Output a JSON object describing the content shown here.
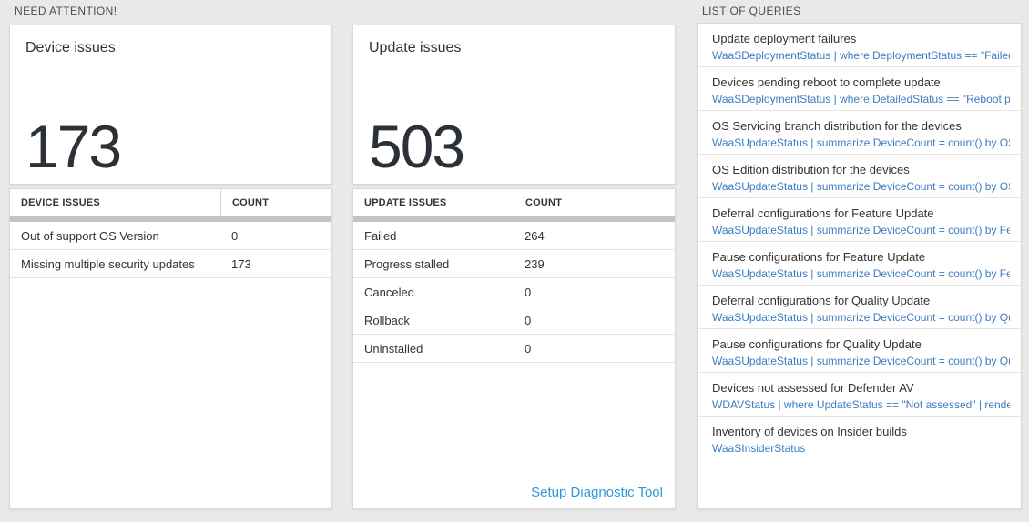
{
  "sections": {
    "need_attention": {
      "label": "NEED ATTENTION!"
    },
    "list_of_queries": {
      "label": "LIST OF QUERIES"
    }
  },
  "device_card": {
    "title": "Device issues",
    "count": "173",
    "table": {
      "headers": [
        "DEVICE ISSUES",
        "COUNT"
      ],
      "rows": [
        {
          "label": "Out of support OS Version",
          "count": "0"
        },
        {
          "label": "Missing multiple security updates",
          "count": "173"
        }
      ]
    }
  },
  "update_card": {
    "title": "Update issues",
    "count": "503",
    "table": {
      "headers": [
        "UPDATE ISSUES",
        "COUNT"
      ],
      "rows": [
        {
          "label": "Failed",
          "count": "264"
        },
        {
          "label": "Progress stalled",
          "count": "239"
        },
        {
          "label": "Canceled",
          "count": "0"
        },
        {
          "label": "Rollback",
          "count": "0"
        },
        {
          "label": "Uninstalled",
          "count": "0"
        }
      ]
    },
    "setup_link": "Setup Diagnostic Tool"
  },
  "queries": [
    {
      "title": "Update deployment failures",
      "query": "WaaSDeploymentStatus | where DeploymentStatus == \"Failed\" |..."
    },
    {
      "title": "Devices pending reboot to complete update",
      "query": "WaaSDeploymentStatus | where DetailedStatus == \"Reboot pend..."
    },
    {
      "title": "OS Servicing branch distribution for the devices",
      "query": "WaaSUpdateStatus | summarize DeviceCount = count() by OSSer..."
    },
    {
      "title": "OS Edition distribution for the devices",
      "query": "WaaSUpdateStatus | summarize DeviceCount = count() by OSEdit..."
    },
    {
      "title": "Deferral configurations for Feature Update",
      "query": "WaaSUpdateStatus | summarize DeviceCount = count() by Featur..."
    },
    {
      "title": "Pause configurations for Feature Update",
      "query": "WaaSUpdateStatus | summarize DeviceCount = count() by Featur..."
    },
    {
      "title": "Deferral configurations for Quality Update",
      "query": "WaaSUpdateStatus | summarize DeviceCount = count() by Qualit..."
    },
    {
      "title": "Pause configurations for Quality Update",
      "query": "WaaSUpdateStatus | summarize DeviceCount = count() by Qualit..."
    },
    {
      "title": "Devices not assessed for Defender AV",
      "query": "WDAVStatus | where UpdateStatus == \"Not assessed\" | render ta..."
    },
    {
      "title": "Inventory of devices on Insider builds",
      "query": "WaaSInsiderStatus"
    }
  ],
  "colors": {
    "page_background": "#e9e9e9",
    "card_border": "#d8d8d8",
    "big_number": "#2b3137",
    "query_blue": "#3b7dc1",
    "link_blue": "#2e9ad8",
    "gray_bar": "#c4c4c4"
  }
}
